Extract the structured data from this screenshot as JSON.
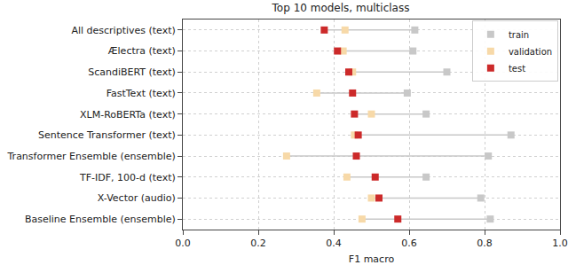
{
  "chart_data": {
    "type": "dot",
    "title": "Top 10 models, multiclass",
    "x_label": "F1 macro",
    "orientation": "horizontal",
    "categories": [
      "All descriptives (text)",
      "Ælectra (text)",
      "ScandiBERT (text)",
      "FastText (text)",
      "XLM-RoBERTa (text)",
      "Sentence Transformer (text)",
      "Transformer Ensemble (ensemble)",
      "TF-IDF, 100-d (text)",
      "X-Vector (audio)",
      "Baseline Ensemble (ensemble)"
    ],
    "series": [
      {
        "name": "train",
        "color": "#c8c8c8",
        "marker": "square",
        "values": [
          0.615,
          0.61,
          0.7,
          0.595,
          0.645,
          0.87,
          0.81,
          0.645,
          0.79,
          0.815
        ]
      },
      {
        "name": "validation",
        "color": "#f7d9a8",
        "marker": "square",
        "values": [
          0.43,
          0.425,
          0.45,
          0.355,
          0.5,
          0.455,
          0.275,
          0.435,
          0.5,
          0.475
        ]
      },
      {
        "name": "test",
        "color": "#cc2a2a",
        "marker": "square",
        "values": [
          0.375,
          0.41,
          0.44,
          0.45,
          0.455,
          0.465,
          0.46,
          0.51,
          0.52,
          0.57
        ]
      }
    ],
    "xlim": [
      0,
      1
    ],
    "xticks": [
      {
        "value": 0,
        "label": "0.0"
      },
      0.2,
      0.4,
      0.6,
      0.8,
      {
        "value": 1,
        "label": "1.0"
      }
    ],
    "grid": true,
    "legend": "upper right"
  }
}
